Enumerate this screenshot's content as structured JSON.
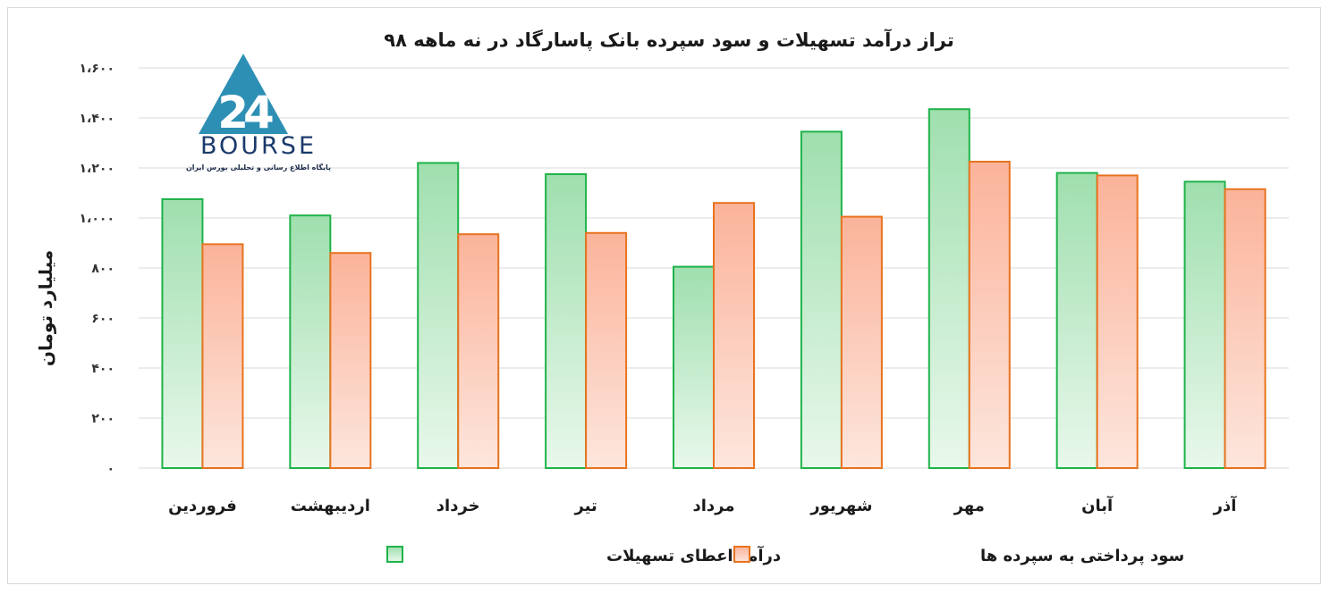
{
  "chart_data": {
    "type": "bar",
    "title": "تراز درآمد تسهیلات و سود سپرده بانک پاسارگاد در نه ماهه ۹۸",
    "ylabel": "میلیارد تومان",
    "xlabel": "",
    "categories": [
      "فروردین",
      "اردیبهشت",
      "خرداد",
      "تیر",
      "مرداد",
      "شهریور",
      "مهر",
      "آبان",
      "آذر"
    ],
    "series": [
      {
        "name": "درآمد اعطای تسهیلات",
        "values": [
          1075,
          1010,
          1220,
          1175,
          805,
          1345,
          1435,
          1180,
          1145
        ]
      },
      {
        "name": "سود پرداختی به سپرده ها",
        "values": [
          895,
          860,
          935,
          940,
          1060,
          1005,
          1225,
          1170,
          1115
        ]
      }
    ],
    "ylim": [
      0,
      1600
    ],
    "yticks": [
      0,
      200,
      400,
      600,
      800,
      1000,
      1200,
      1400,
      1600
    ],
    "ytick_labels": [
      "۰",
      "۲۰۰",
      "۴۰۰",
      "۶۰۰",
      "۸۰۰",
      "۱،۰۰۰",
      "۱،۲۰۰",
      "۱،۴۰۰",
      "۱،۶۰۰"
    ],
    "grid": true,
    "legend_position": "bottom",
    "colors": {
      "series_0_fill_top": "#9fdfae",
      "series_0_fill_bottom": "#e9f8ec",
      "series_0_stroke": "#1fb34a",
      "series_1_fill_top": "#fbb39a",
      "series_1_fill_bottom": "#fde6dd",
      "series_1_stroke": "#e8731f",
      "grid": "#d9d9d9"
    }
  },
  "logo": {
    "text": "BOURSE",
    "number": "24",
    "subtitle": "پایگاه اطلاع رسانی و تحلیلی بورس ایران",
    "color": "#2e8fb4"
  }
}
